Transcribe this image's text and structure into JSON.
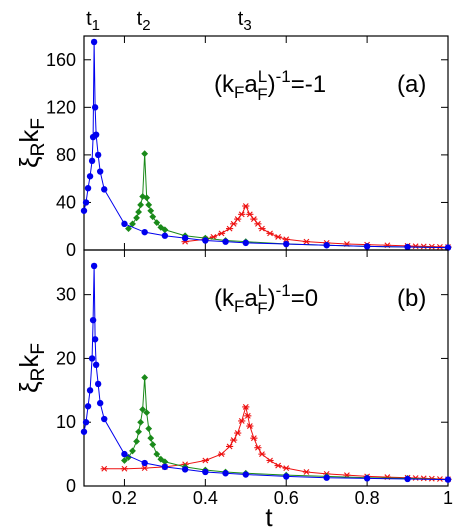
{
  "colors": {
    "blue": "#0000ee",
    "green": "#1a8a1a",
    "red": "#ee1111",
    "frame": "#000000"
  },
  "top_markers": [
    {
      "label_main": "t",
      "label_sub": "1",
      "x": 0.125
    },
    {
      "label_main": "t",
      "label_sub": "2",
      "x": 0.25
    },
    {
      "label_main": "t",
      "label_sub": "3",
      "x": 0.5
    }
  ],
  "shared_x": {
    "label": "t",
    "ticks": [
      0.2,
      0.4,
      0.6,
      0.8,
      1
    ],
    "tick_labels": [
      "0.2",
      "0.4",
      "0.6",
      "0.8",
      "1"
    ],
    "xlim": [
      0.1,
      1.0
    ]
  },
  "chart_data": [
    {
      "type": "line",
      "panel_tag": "(a)",
      "annotation": {
        "prefix": "(k",
        "sub1": "F",
        "mid": "a",
        "sup": "L",
        "sub2": "F",
        "tail": ")",
        "exp": "-1",
        "eq": "=-1"
      },
      "ylabel": {
        "main": "ξ",
        "sub1": "R",
        "mid": "k",
        "sub2": "F"
      },
      "ylim": [
        0,
        180
      ],
      "yticks": [
        0,
        40,
        80,
        120,
        160
      ],
      "ytick_labels": [
        "0",
        "40",
        "80",
        "120",
        "160"
      ],
      "series": [
        {
          "color": "blue",
          "marker": "circle",
          "x": [
            0.1,
            0.105,
            0.11,
            0.115,
            0.12,
            0.1225,
            0.125,
            0.1275,
            0.13,
            0.135,
            0.14,
            0.15,
            0.2,
            0.25,
            0.3,
            0.35,
            0.4,
            0.45,
            0.5,
            0.6,
            0.7,
            0.8,
            0.9,
            1.0
          ],
          "y": [
            33,
            40,
            52,
            62,
            75,
            95,
            175,
            120,
            97,
            80,
            66,
            51,
            22,
            15,
            12,
            10,
            8,
            7,
            6,
            5,
            4,
            3,
            2.5,
            2
          ]
        },
        {
          "color": "green",
          "marker": "diamond",
          "x": [
            0.21,
            0.22,
            0.23,
            0.235,
            0.24,
            0.245,
            0.25,
            0.255,
            0.26,
            0.265,
            0.27,
            0.28,
            0.29,
            0.3,
            0.35,
            0.4,
            0.45,
            0.5,
            0.6,
            0.7,
            0.8,
            0.9,
            1.0
          ],
          "y": [
            18,
            22,
            27,
            32,
            38,
            45,
            81,
            44,
            38,
            33,
            28,
            23,
            19,
            17,
            12,
            10,
            8,
            7,
            5,
            4,
            3,
            2.5,
            2
          ]
        },
        {
          "color": "red",
          "marker": "star",
          "x": [
            0.35,
            0.4,
            0.42,
            0.44,
            0.46,
            0.47,
            0.48,
            0.49,
            0.5,
            0.51,
            0.52,
            0.53,
            0.54,
            0.56,
            0.58,
            0.6,
            0.65,
            0.7,
            0.75,
            0.8,
            0.85,
            0.9,
            0.92,
            0.94,
            0.96,
            0.98,
            1.0
          ],
          "y": [
            7,
            9,
            11,
            14,
            18,
            22,
            26,
            30,
            37,
            30,
            26,
            22,
            18,
            14,
            11,
            9,
            7,
            6,
            5,
            4.5,
            4,
            3.5,
            3.2,
            3,
            2.8,
            2.6,
            2.5
          ]
        }
      ]
    },
    {
      "type": "line",
      "panel_tag": "(b)",
      "annotation": {
        "prefix": "(k",
        "sub1": "F",
        "mid": "a",
        "sup": "L",
        "sub2": "F",
        "tail": ")",
        "exp": "-1",
        "eq": "=0"
      },
      "ylabel": {
        "main": "ξ",
        "sub1": "R",
        "mid": "k",
        "sub2": "F"
      },
      "ylim": [
        0,
        37
      ],
      "yticks": [
        0,
        10,
        20,
        30
      ],
      "ytick_labels": [
        "0",
        "10",
        "20",
        "30"
      ],
      "series": [
        {
          "color": "blue",
          "marker": "circle",
          "x": [
            0.1,
            0.105,
            0.11,
            0.115,
            0.12,
            0.1225,
            0.125,
            0.1275,
            0.13,
            0.135,
            0.14,
            0.15,
            0.2,
            0.25,
            0.3,
            0.35,
            0.4,
            0.45,
            0.5,
            0.6,
            0.7,
            0.8,
            0.9,
            1.0
          ],
          "y": [
            8.5,
            10,
            12.5,
            15,
            20,
            26,
            34.5,
            23,
            19,
            16,
            13,
            10.5,
            5,
            3.6,
            3,
            2.6,
            2.2,
            2,
            1.8,
            1.5,
            1.3,
            1.2,
            1.1,
            1
          ]
        },
        {
          "color": "green",
          "marker": "diamond",
          "x": [
            0.2,
            0.21,
            0.22,
            0.23,
            0.235,
            0.24,
            0.245,
            0.25,
            0.255,
            0.26,
            0.265,
            0.27,
            0.28,
            0.29,
            0.3,
            0.35,
            0.4,
            0.45,
            0.5,
            0.6,
            0.7,
            0.8,
            0.9,
            1.0
          ],
          "y": [
            4,
            4.5,
            5.5,
            7,
            8.5,
            10,
            12,
            17,
            11.5,
            9,
            7.5,
            6.5,
            5,
            4.2,
            3.8,
            3,
            2.5,
            2.2,
            2,
            1.7,
            1.5,
            1.3,
            1.2,
            1
          ]
        },
        {
          "color": "red",
          "marker": "star",
          "x": [
            0.15,
            0.2,
            0.25,
            0.3,
            0.35,
            0.4,
            0.44,
            0.46,
            0.47,
            0.48,
            0.49,
            0.5,
            0.505,
            0.51,
            0.52,
            0.53,
            0.54,
            0.56,
            0.58,
            0.6,
            0.65,
            0.7,
            0.75,
            0.8,
            0.85,
            0.9,
            0.92,
            0.94,
            0.96,
            0.98,
            1.0
          ],
          "y": [
            2.7,
            2.7,
            2.8,
            3,
            3.4,
            4,
            5,
            6.2,
            7.2,
            8.3,
            10.2,
            12.4,
            11,
            9.4,
            7.5,
            6,
            5,
            4,
            3.2,
            2.8,
            2.2,
            1.9,
            1.7,
            1.5,
            1.4,
            1.3,
            1.25,
            1.2,
            1.15,
            1.1,
            1.05
          ]
        }
      ]
    }
  ]
}
